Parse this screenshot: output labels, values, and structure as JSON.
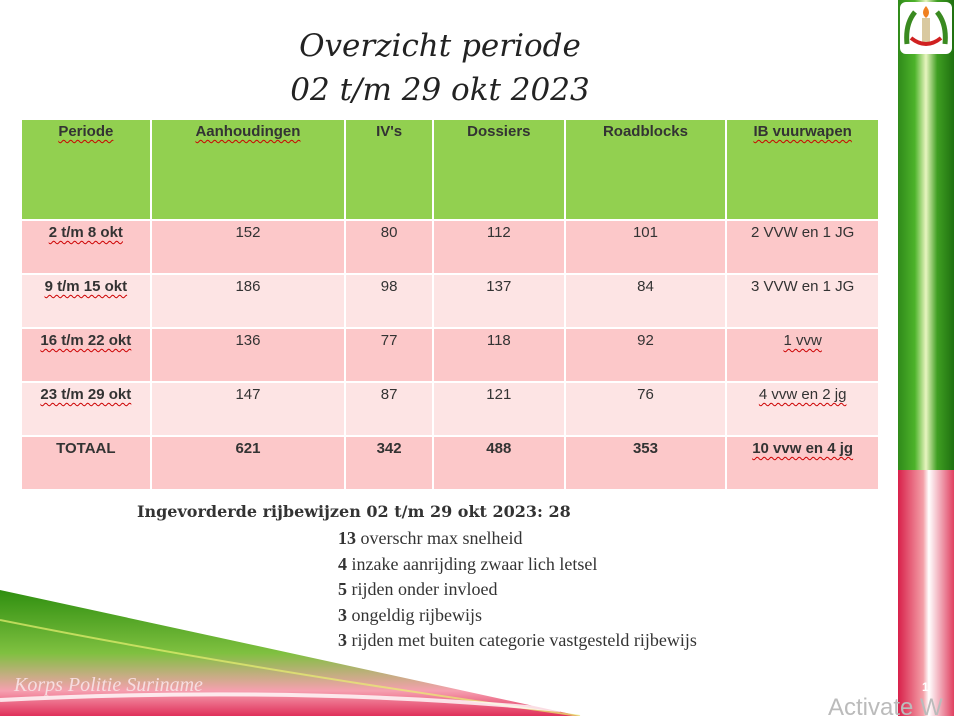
{
  "title": {
    "line1": "Overzicht  periode",
    "line2": "02 t/m 29 okt 2023"
  },
  "table": {
    "headers": [
      "Periode",
      "Aanhoudingen",
      "IV's",
      "Dossiers",
      "Roadblocks",
      "IB vuurwapen"
    ],
    "rows": [
      [
        "2 t/m 8 okt",
        "152",
        "80",
        "112",
        "101",
        "2 VVW en 1 JG"
      ],
      [
        "9 t/m 15 okt",
        "186",
        "98",
        "137",
        "84",
        "3 VVW en 1 JG"
      ],
      [
        "16 t/m 22 okt",
        "136",
        "77",
        "118",
        "92",
        "1 vvw"
      ],
      [
        "23 t/m 29 okt",
        "147",
        "87",
        "121",
        "76",
        "4 vvw en 2 jg"
      ],
      [
        "TOTAAL",
        "621",
        "342",
        "488",
        "353",
        "10 vvw en 4 jg"
      ]
    ]
  },
  "summary": "Ingevorderde rijbewijzen  02 t/m 29 okt 2023:  28",
  "list": [
    {
      "n": "13",
      "text": " overschr max snelheid"
    },
    {
      "n": "4",
      "text": " inzake aanrijding zwaar lich letsel"
    },
    {
      "n": "5",
      "text": " rijden onder invloed"
    },
    {
      "n": "3",
      "text": " ongeldig rijbewijs"
    },
    {
      "n": "3",
      "text": " rijden met buiten categorie vastgesteld rijbewijs"
    }
  ],
  "footer": "Korps Politie Suriname",
  "page_number": "1",
  "watermark": "Activate W"
}
